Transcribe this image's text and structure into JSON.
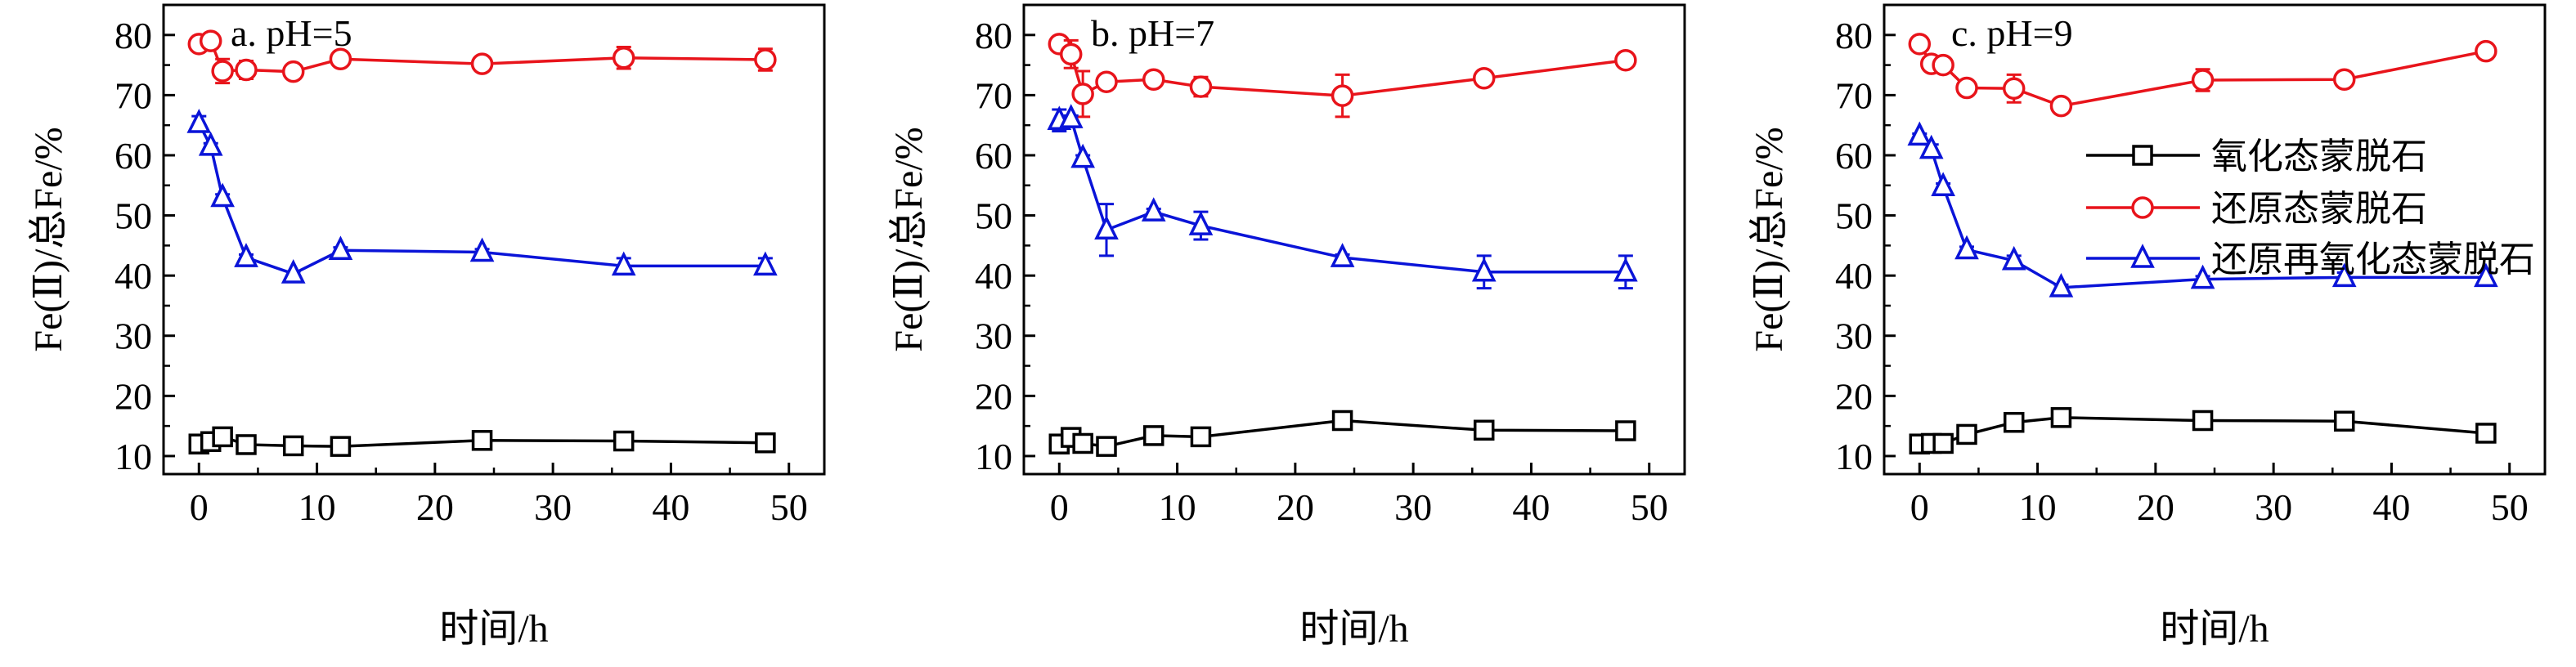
{
  "chart_data": [
    {
      "type": "line",
      "title": "a. pH=5",
      "xlabel": "时间/h",
      "ylabel": "Fe(Ⅱ)/总Fe/%",
      "xlim": [
        -3,
        53
      ],
      "ylim": [
        7,
        85
      ],
      "xticks": [
        0,
        10,
        20,
        30,
        40,
        50
      ],
      "yticks": [
        10,
        20,
        30,
        40,
        50,
        60,
        70,
        80
      ],
      "x": [
        0,
        1,
        2,
        4,
        8,
        12,
        24,
        36,
        48
      ],
      "series": [
        {
          "name": "氧化态蒙脱石",
          "color": "#000000",
          "marker": "square",
          "values": [
            12.0,
            12.4,
            13.2,
            11.9,
            11.7,
            11.6,
            12.6,
            12.5,
            12.2
          ],
          "errors": [
            0.3,
            0.4,
            0.5,
            0.4,
            0.3,
            0.3,
            0.5,
            0.4,
            0.4
          ]
        },
        {
          "name": "还原态蒙脱石",
          "color": "#e8141b",
          "marker": "circle",
          "values": [
            78.5,
            79.0,
            74.0,
            74.2,
            73.9,
            76.0,
            75.2,
            76.2,
            75.9
          ],
          "errors": [
            0.4,
            0.5,
            2.0,
            1.5,
            0.5,
            0.5,
            0.8,
            1.8,
            1.8
          ]
        },
        {
          "name": "还原再氧化态蒙脱石",
          "color": "#0a14d8",
          "marker": "triangle",
          "values": [
            65.3,
            61.5,
            53.0,
            43.0,
            40.3,
            44.2,
            43.9,
            41.6,
            41.6
          ],
          "errors": [
            1.2,
            0.5,
            0.5,
            0.5,
            0.4,
            0.5,
            0.5,
            1.3,
            1.3
          ]
        }
      ]
    },
    {
      "type": "line",
      "title": "b. pH=7",
      "xlabel": "时间/h",
      "ylabel": "Fe(Ⅱ)/总Fe/%",
      "xlim": [
        -3,
        53
      ],
      "ylim": [
        7,
        85
      ],
      "xticks": [
        0,
        10,
        20,
        30,
        40,
        50
      ],
      "yticks": [
        10,
        20,
        30,
        40,
        50,
        60,
        70,
        80
      ],
      "x": [
        0,
        1,
        2,
        4,
        8,
        12,
        24,
        36,
        48
      ],
      "series": [
        {
          "name": "氧化态蒙脱石",
          "color": "#000000",
          "marker": "square",
          "values": [
            12.0,
            13.1,
            12.1,
            11.6,
            13.4,
            13.2,
            15.9,
            14.3,
            14.2
          ],
          "errors": [
            0.3,
            0.5,
            0.4,
            0.5,
            0.5,
            0.4,
            0.6,
            0.4,
            0.4
          ]
        },
        {
          "name": "还原态蒙脱石",
          "color": "#e8141b",
          "marker": "circle",
          "values": [
            78.5,
            76.8,
            70.2,
            72.2,
            72.6,
            71.4,
            69.9,
            72.8,
            75.8
          ],
          "errors": [
            0.5,
            2.3,
            3.8,
            1.0,
            0.5,
            1.6,
            3.5,
            0.5,
            0.5
          ]
        },
        {
          "name": "还原再氧化态蒙脱石",
          "color": "#0a14d8",
          "marker": "triangle",
          "values": [
            65.8,
            66.1,
            59.5,
            47.6,
            50.6,
            48.3,
            43.0,
            40.6,
            40.6
          ],
          "errors": [
            1.8,
            0.5,
            0.5,
            4.3,
            0.5,
            2.3,
            0.5,
            2.7,
            2.7
          ]
        }
      ]
    },
    {
      "type": "line",
      "title": "c. pH=9",
      "xlabel": "时间/h",
      "ylabel": "Fe(Ⅱ)/总Fe/%",
      "xlim": [
        -3,
        53
      ],
      "ylim": [
        7,
        85
      ],
      "xticks": [
        0,
        10,
        20,
        30,
        40,
        50
      ],
      "yticks": [
        10,
        20,
        30,
        40,
        50,
        60,
        70,
        80
      ],
      "x": [
        0,
        1,
        2,
        4,
        8,
        12,
        24,
        36,
        48
      ],
      "legend_position": "center-right",
      "series": [
        {
          "name": "氧化态蒙脱石",
          "color": "#000000",
          "marker": "square",
          "values": [
            12.0,
            12.1,
            12.1,
            13.6,
            15.6,
            16.4,
            15.9,
            15.8,
            13.8
          ],
          "errors": [
            0.3,
            0.4,
            0.4,
            0.5,
            0.5,
            0.5,
            0.5,
            0.5,
            0.4
          ]
        },
        {
          "name": "还原态蒙脱石",
          "color": "#e8141b",
          "marker": "circle",
          "values": [
            78.5,
            75.2,
            75.0,
            71.2,
            71.1,
            68.2,
            72.5,
            72.6,
            77.3
          ],
          "errors": [
            0.5,
            0.5,
            0.5,
            0.6,
            2.3,
            0.5,
            1.8,
            0.5,
            0.5
          ]
        },
        {
          "name": "还原再氧化态蒙脱石",
          "color": "#0a14d8",
          "marker": "triangle",
          "values": [
            63.2,
            61.0,
            54.8,
            44.3,
            42.5,
            38.0,
            39.4,
            39.7,
            39.7
          ],
          "errors": [
            0.4,
            0.8,
            0.5,
            0.5,
            0.8,
            0.5,
            0.5,
            0.8,
            0.8
          ]
        }
      ]
    }
  ]
}
